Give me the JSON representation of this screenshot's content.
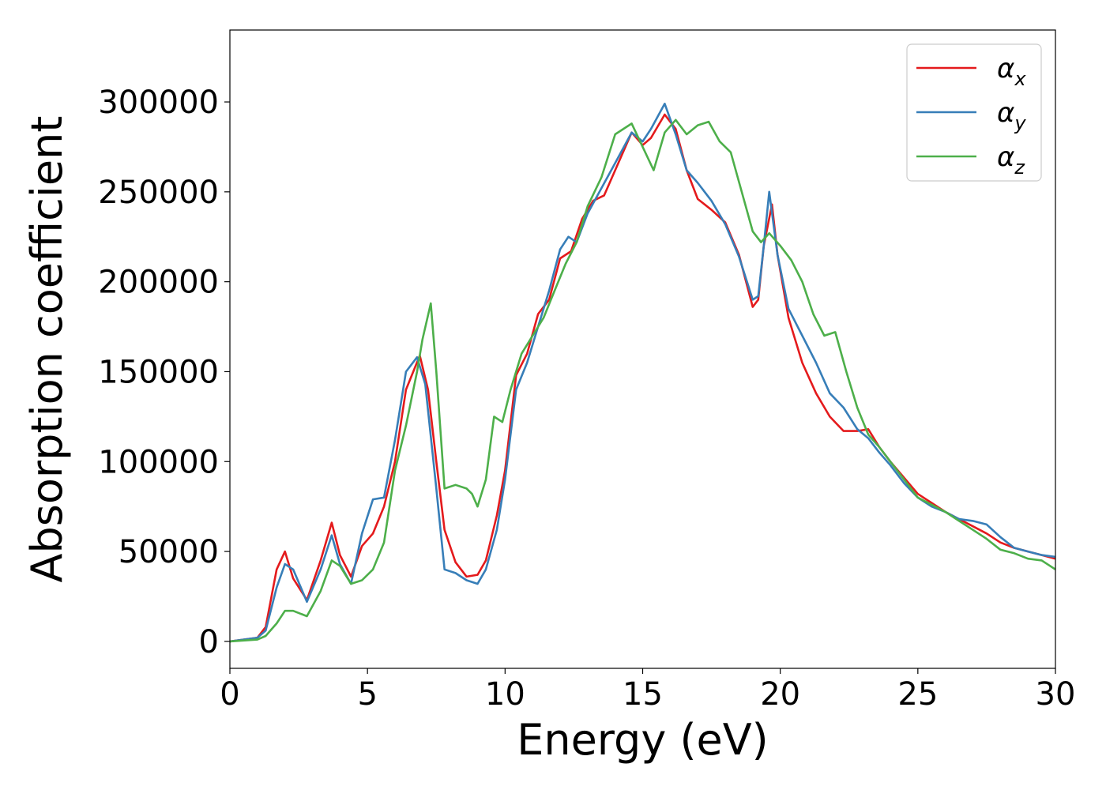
{
  "chart_data": {
    "type": "line",
    "title": "",
    "xlabel": "Energy (eV)",
    "ylabel": "Absorption coefficient",
    "xlim": [
      0,
      30
    ],
    "ylim": [
      -15000,
      340000
    ],
    "xticks": [
      0,
      5,
      10,
      15,
      20,
      25,
      30
    ],
    "yticks": [
      0,
      50000,
      100000,
      150000,
      200000,
      250000,
      300000
    ],
    "xtick_labels": [
      "0",
      "5",
      "10",
      "15",
      "20",
      "25",
      "30"
    ],
    "ytick_labels": [
      "0",
      "50000",
      "100000",
      "150000",
      "200000",
      "250000",
      "300000"
    ],
    "grid": false,
    "legend_position": "top-right",
    "series": [
      {
        "name": "αx",
        "legend": {
          "base": "α",
          "sub": "x"
        },
        "color": "#e41a1c",
        "x": [
          0,
          1,
          1.3,
          1.7,
          2.0,
          2.3,
          2.8,
          3.3,
          3.7,
          4.0,
          4.4,
          4.8,
          5.2,
          5.6,
          6.0,
          6.4,
          6.9,
          7.2,
          7.5,
          7.8,
          8.2,
          8.6,
          9.0,
          9.3,
          9.7,
          10.0,
          10.4,
          10.8,
          11.2,
          11.6,
          12.0,
          12.4,
          12.8,
          13.2,
          13.6,
          14.0,
          14.6,
          15.0,
          15.3,
          15.8,
          16.2,
          16.6,
          17.0,
          17.5,
          18.0,
          18.5,
          19.0,
          19.2,
          19.4,
          19.7,
          19.9,
          20.3,
          20.8,
          21.3,
          21.8,
          22.3,
          22.8,
          23.2,
          23.6,
          24.0,
          24.5,
          25.0,
          25.5,
          26.0,
          26.5,
          27.0,
          27.5,
          28.0,
          28.5,
          29.0,
          29.5,
          30.0
        ],
        "values": [
          0,
          2000,
          8000,
          40000,
          50000,
          35000,
          23000,
          45000,
          66000,
          48000,
          36000,
          53000,
          60000,
          75000,
          100000,
          140000,
          159000,
          140000,
          100000,
          62000,
          44000,
          36000,
          37000,
          45000,
          70000,
          95000,
          148000,
          160000,
          182000,
          190000,
          213000,
          217000,
          235000,
          245000,
          248000,
          262000,
          283000,
          276000,
          280000,
          293000,
          285000,
          262000,
          246000,
          240000,
          233000,
          215000,
          186000,
          190000,
          220000,
          243000,
          215000,
          180000,
          155000,
          138000,
          125000,
          117000,
          117000,
          118000,
          108000,
          100000,
          91000,
          82000,
          77000,
          72000,
          68000,
          64000,
          60000,
          55000,
          52000,
          50000,
          48000,
          46000
        ]
      },
      {
        "name": "αy",
        "legend": {
          "base": "α",
          "sub": "y"
        },
        "color": "#377eb8",
        "x": [
          0,
          1,
          1.3,
          1.7,
          2.0,
          2.3,
          2.8,
          3.3,
          3.7,
          4.0,
          4.4,
          4.8,
          5.2,
          5.6,
          6.0,
          6.4,
          6.8,
          7.1,
          7.5,
          7.8,
          8.2,
          8.6,
          9.0,
          9.3,
          9.7,
          10.0,
          10.4,
          10.8,
          11.2,
          11.6,
          12.0,
          12.3,
          12.6,
          13.0,
          13.5,
          14.0,
          14.6,
          15.0,
          15.3,
          15.8,
          16.2,
          16.6,
          17.0,
          17.5,
          18.0,
          18.5,
          19.0,
          19.2,
          19.4,
          19.6,
          19.9,
          20.3,
          20.8,
          21.3,
          21.8,
          22.3,
          22.8,
          23.2,
          23.6,
          24.0,
          24.5,
          25.0,
          25.5,
          26.0,
          26.5,
          27.0,
          27.5,
          28.0,
          28.5,
          29.0,
          29.5,
          30.0
        ],
        "values": [
          0,
          2000,
          6000,
          30000,
          43000,
          40000,
          22000,
          40000,
          59000,
          43000,
          32000,
          60000,
          79000,
          80000,
          112000,
          150000,
          158000,
          143000,
          85000,
          40000,
          38000,
          34000,
          32000,
          40000,
          62000,
          90000,
          140000,
          155000,
          175000,
          195000,
          218000,
          225000,
          222000,
          238000,
          252000,
          266000,
          283000,
          278000,
          285000,
          299000,
          282000,
          262000,
          255000,
          245000,
          232000,
          214000,
          190000,
          192000,
          220000,
          250000,
          215000,
          185000,
          170000,
          155000,
          138000,
          130000,
          118000,
          113000,
          105000,
          98000,
          88000,
          80000,
          75000,
          72000,
          68000,
          67000,
          65000,
          58000,
          52000,
          50000,
          48000,
          47000
        ]
      },
      {
        "name": "αz",
        "legend": {
          "base": "α",
          "sub": "z"
        },
        "color": "#4daf4a",
        "x": [
          0,
          1,
          1.3,
          1.7,
          2.0,
          2.3,
          2.8,
          3.3,
          3.7,
          4.0,
          4.4,
          4.8,
          5.2,
          5.6,
          6.0,
          6.4,
          6.8,
          7.0,
          7.3,
          7.5,
          7.8,
          8.2,
          8.6,
          8.8,
          9.0,
          9.3,
          9.6,
          9.9,
          10.2,
          10.6,
          11.0,
          11.4,
          11.8,
          12.2,
          12.6,
          13.0,
          13.5,
          14.0,
          14.6,
          15.0,
          15.4,
          15.8,
          16.2,
          16.6,
          17.0,
          17.4,
          17.8,
          18.2,
          18.6,
          19.0,
          19.3,
          19.6,
          20.0,
          20.4,
          20.8,
          21.2,
          21.6,
          22.0,
          22.4,
          22.8,
          23.2,
          23.6,
          24.0,
          24.5,
          25.0,
          25.5,
          26.0,
          26.5,
          27.0,
          27.5,
          28.0,
          28.5,
          29.0,
          29.5,
          30.0
        ],
        "values": [
          0,
          1000,
          3000,
          10000,
          17000,
          17000,
          14000,
          28000,
          45000,
          42000,
          32000,
          34000,
          40000,
          55000,
          95000,
          120000,
          150000,
          168000,
          188000,
          150000,
          85000,
          87000,
          85000,
          82000,
          75000,
          90000,
          125000,
          122000,
          140000,
          160000,
          170000,
          180000,
          195000,
          210000,
          222000,
          242000,
          258000,
          282000,
          288000,
          275000,
          262000,
          283000,
          290000,
          282000,
          287000,
          289000,
          278000,
          272000,
          250000,
          228000,
          222000,
          227000,
          220000,
          212000,
          200000,
          182000,
          170000,
          172000,
          150000,
          130000,
          115000,
          108000,
          100000,
          90000,
          80000,
          76000,
          72000,
          67000,
          62000,
          57000,
          51000,
          49000,
          46000,
          45000,
          40000
        ]
      }
    ]
  }
}
